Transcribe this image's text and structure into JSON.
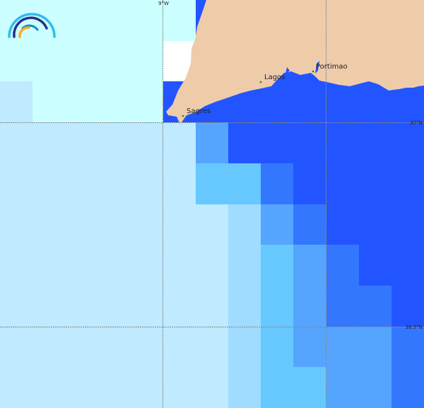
{
  "grid": {
    "level_colors": [
      "#ffffff",
      "#ccffff",
      "#bfeaff",
      "#a0dcff",
      "#66c8ff",
      "#55a5ff",
      "#3377ff",
      "#2255ff"
    ],
    "cells": [
      [
        1,
        1,
        1,
        1,
        1,
        1,
        7,
        7,
        7,
        7,
        7,
        7,
        7
      ],
      [
        1,
        1,
        1,
        1,
        1,
        0,
        7,
        7,
        7,
        7,
        7,
        7,
        7
      ],
      [
        2,
        1,
        1,
        1,
        1,
        7,
        7,
        7,
        7,
        7,
        7,
        7,
        7
      ],
      [
        2,
        2,
        2,
        2,
        2,
        2,
        5,
        7,
        7,
        7,
        7,
        7,
        7
      ],
      [
        2,
        2,
        2,
        2,
        2,
        2,
        4,
        4,
        6,
        7,
        7,
        7,
        7
      ],
      [
        2,
        2,
        2,
        2,
        2,
        2,
        2,
        3,
        5,
        6,
        7,
        7,
        7
      ],
      [
        2,
        2,
        2,
        2,
        2,
        2,
        2,
        3,
        4,
        5,
        6,
        7,
        7
      ],
      [
        2,
        2,
        2,
        2,
        2,
        2,
        2,
        3,
        4,
        5,
        6,
        6,
        7
      ],
      [
        2,
        2,
        2,
        2,
        2,
        2,
        2,
        3,
        4,
        5,
        5,
        5,
        6
      ],
      [
        2,
        2,
        2,
        2,
        2,
        2,
        2,
        3,
        4,
        4,
        5,
        5,
        6
      ]
    ]
  },
  "land_color": "#eeccaa",
  "graticule": {
    "lon_label": "9°W",
    "lat_labels": [
      "37°N",
      "36.5°N"
    ]
  },
  "places": [
    {
      "name": "Sagres"
    },
    {
      "name": "Lagos"
    },
    {
      "name": "Portimao"
    }
  ]
}
